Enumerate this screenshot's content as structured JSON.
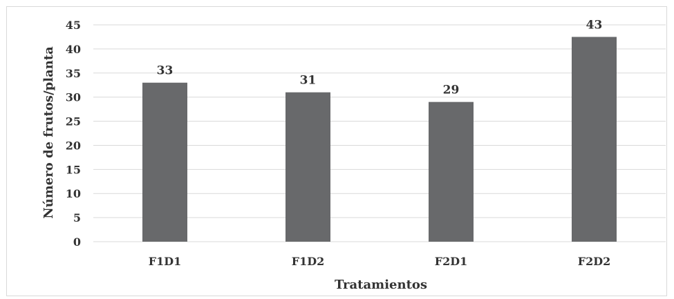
{
  "chart_data": {
    "type": "bar",
    "categories": [
      "F1D1",
      "F1D2",
      "F2D1",
      "F2D2"
    ],
    "values": [
      33,
      31,
      29,
      42.5
    ],
    "data_labels": [
      "33",
      "31",
      "29",
      "43"
    ],
    "title": "",
    "xlabel": "Tratamientos",
    "ylabel": "Número de frutos/planta",
    "ylim": [
      0,
      45
    ],
    "yticks": [
      0,
      5,
      10,
      15,
      20,
      25,
      30,
      35,
      40,
      45
    ],
    "grid": true,
    "legend": "none",
    "colors": {
      "bar": "#68696b",
      "grid": "#d9d9d9",
      "text": "#333333"
    }
  }
}
